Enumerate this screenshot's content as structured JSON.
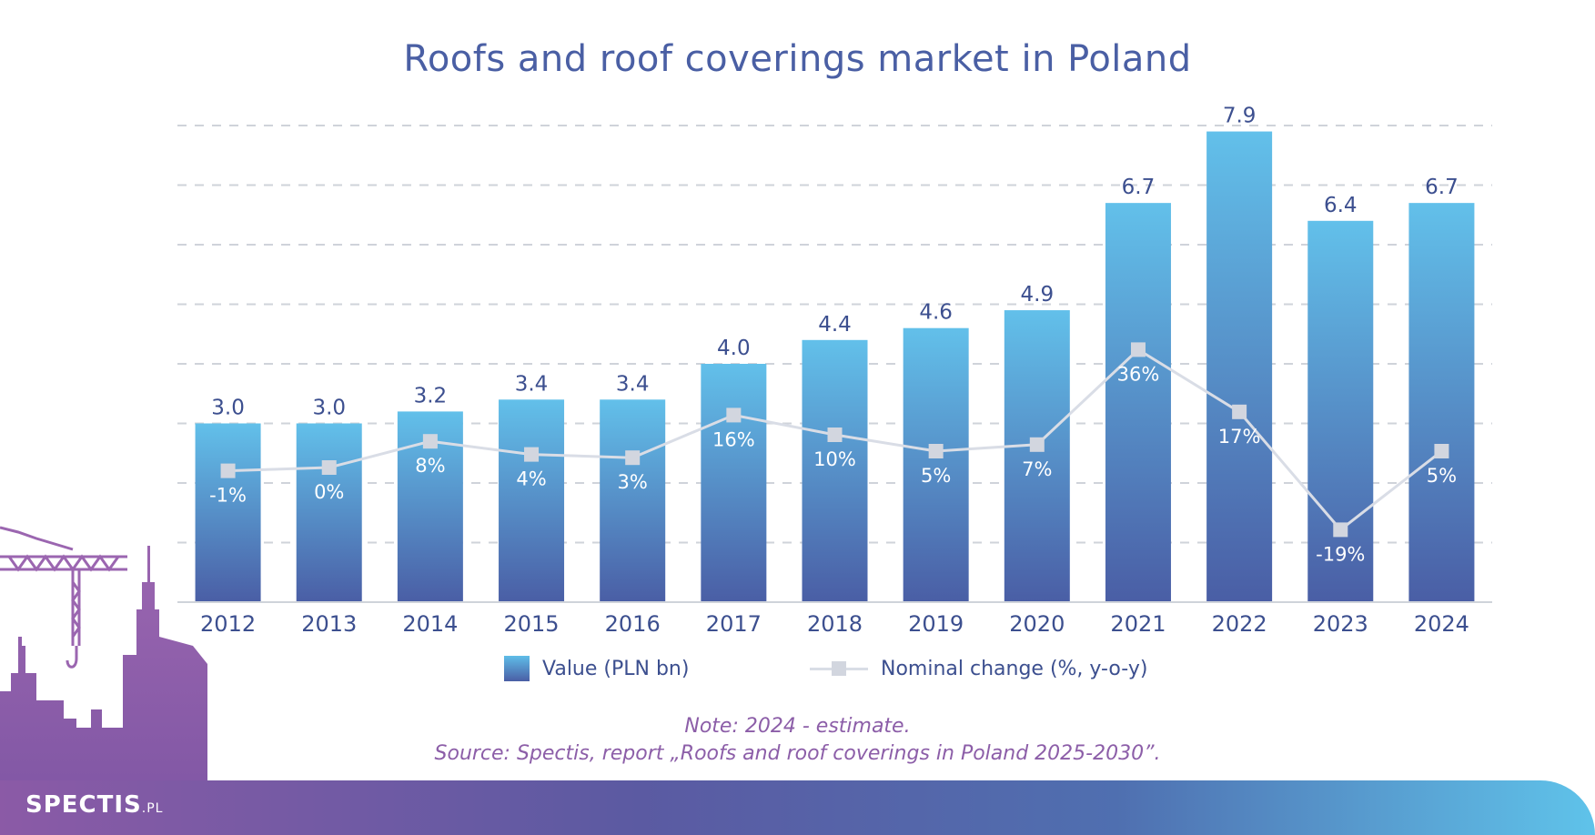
{
  "chart_data": {
    "type": "bar",
    "title": "Roofs and roof coverings market in Poland",
    "categories": [
      "2012",
      "2013",
      "2014",
      "2015",
      "2016",
      "2017",
      "2018",
      "2019",
      "2020",
      "2021",
      "2022",
      "2023",
      "2024"
    ],
    "series": [
      {
        "name": "Value (PLN bn)",
        "type": "bar",
        "values": [
          3.0,
          3.0,
          3.2,
          3.4,
          3.4,
          4.0,
          4.4,
          4.6,
          4.9,
          6.7,
          7.9,
          6.4,
          6.7
        ],
        "labels": [
          "3.0",
          "3.0",
          "3.2",
          "3.4",
          "3.4",
          "4.0",
          "4.4",
          "4.6",
          "4.9",
          "6.7",
          "7.9",
          "6.4",
          "6.7"
        ]
      },
      {
        "name": "Nominal change (%, y-o-y)",
        "type": "line",
        "values": [
          -1,
          0,
          8,
          4,
          3,
          16,
          10,
          5,
          7,
          36,
          17,
          -19,
          5
        ],
        "labels": [
          "-1%",
          "0%",
          "8%",
          "4%",
          "3%",
          "16%",
          "10%",
          "5%",
          "7%",
          "36%",
          "17%",
          "-19%",
          "5%"
        ]
      }
    ],
    "grid": true,
    "legend_position": "bottom"
  },
  "note": "Note: 2024 - estimate.",
  "source": "Source: Spectis, report „Roofs and roof coverings in Poland 2025-2030”.",
  "brand": {
    "name": "SPECTIS",
    "suffix": ".PL"
  },
  "colors": {
    "bar_top": "#62c0ea",
    "bar_bottom": "#4a5ea5",
    "line": "#d9dde6",
    "marker": "#d2d6df",
    "title": "#4a5fa4",
    "note": "#8c5ea8",
    "skyline": "#8d5aa6"
  }
}
